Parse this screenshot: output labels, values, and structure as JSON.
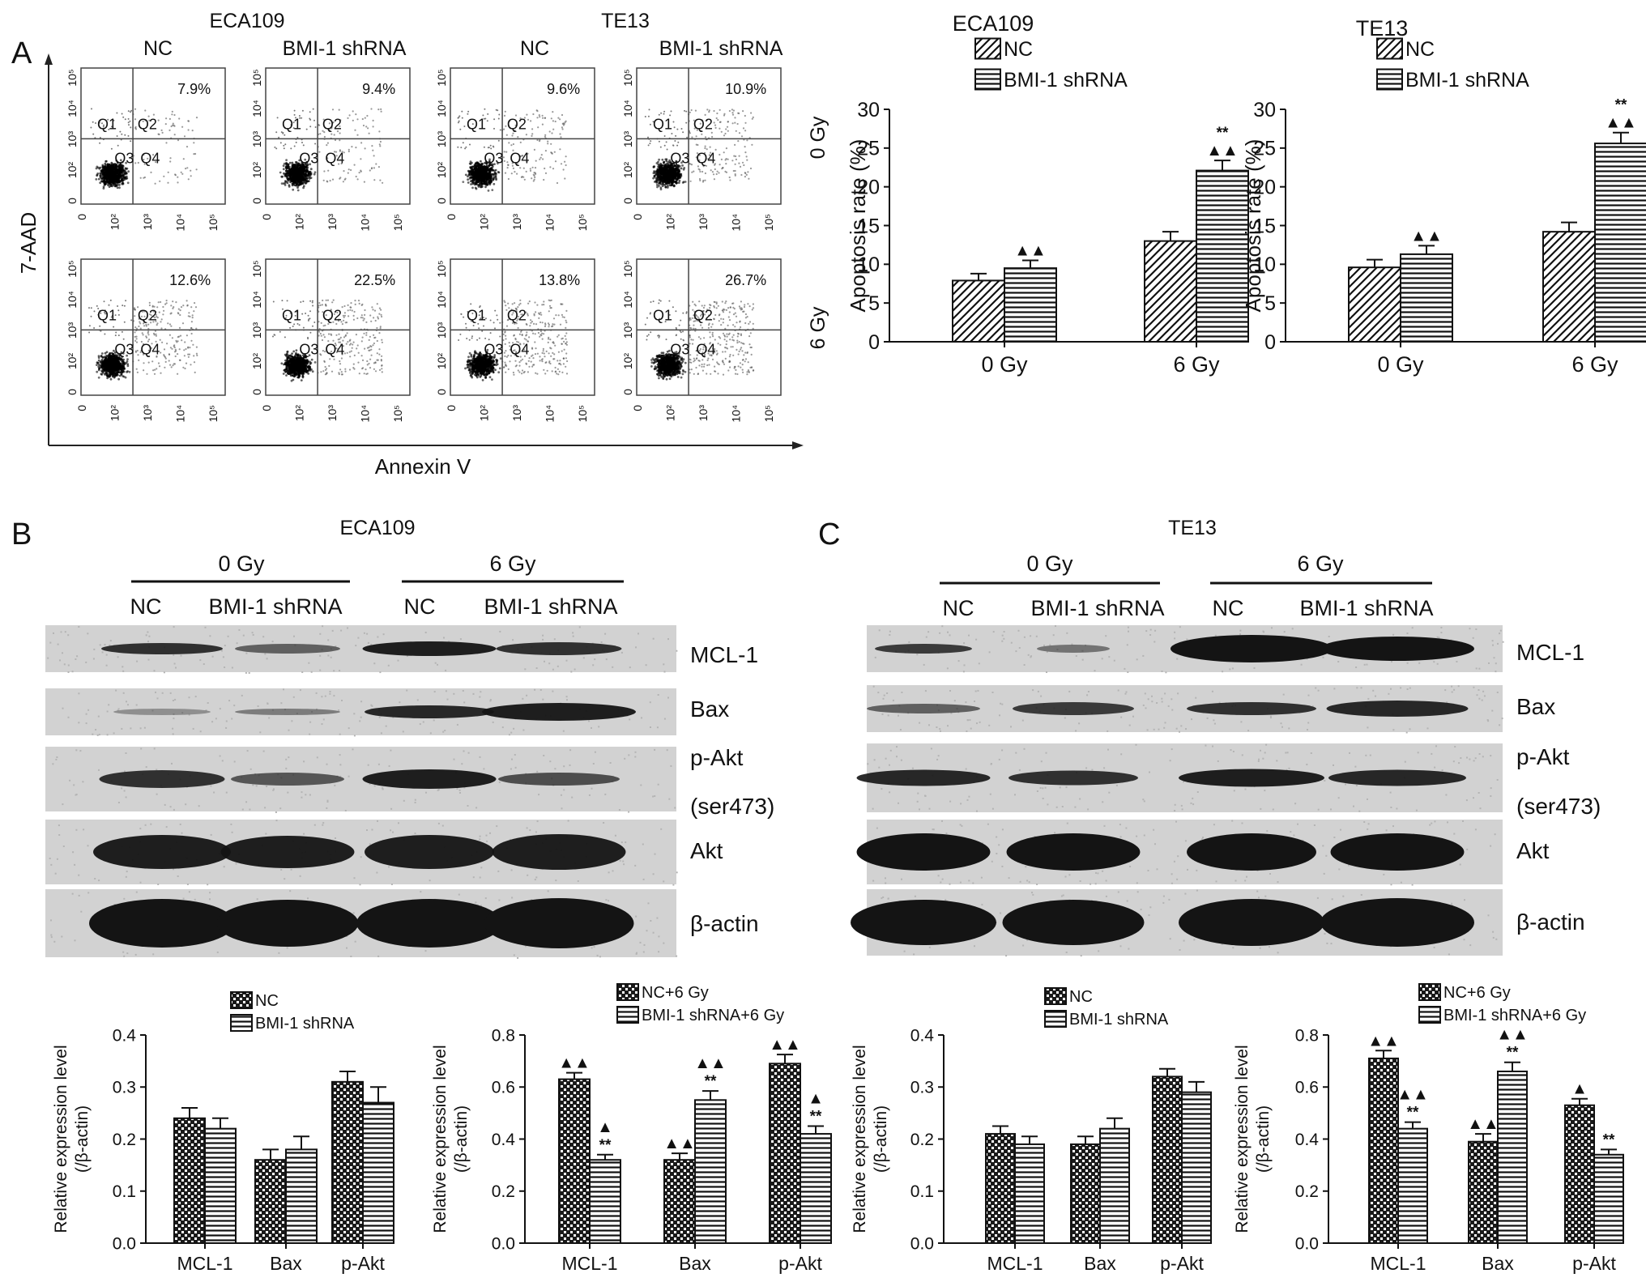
{
  "panel_letters": [
    "A",
    "B",
    "C"
  ],
  "flow": {
    "cell_lines": [
      "ECA109",
      "TE13"
    ],
    "group_labels": [
      "NC",
      "BMI-1 shRNA",
      "NC",
      "BMI-1 shRNA"
    ],
    "dose_labels": [
      "0 Gy",
      "6 Gy"
    ],
    "y_axis_label": "7-AAD",
    "x_axis_label": "Annexin V",
    "quadrants": [
      "Q1",
      "Q2",
      "Q3",
      "Q4"
    ],
    "tick_labels": [
      "0",
      "10²",
      "10³",
      "10⁴",
      "10⁵"
    ],
    "percentages": [
      [
        "7.9%",
        "9.4%",
        "9.6%",
        "10.9%"
      ],
      [
        "12.6%",
        "22.5%",
        "13.8%",
        "26.7%"
      ]
    ]
  },
  "western": {
    "titles": [
      "ECA109",
      "TE13"
    ],
    "dose_labels": [
      "0 Gy",
      "6 Gy"
    ],
    "lane_labels": [
      "NC",
      "BMI-1 shRNA",
      "NC",
      "BMI-1 shRNA"
    ],
    "proteins": [
      "MCL-1",
      "Bax",
      "p-Akt",
      "(ser473)",
      "Akt",
      "β-actin"
    ]
  },
  "chart_data": [
    {
      "type": "bar",
      "title": "ECA109",
      "categories": [
        "0 Gy",
        "6 Gy"
      ],
      "series": [
        {
          "name": "NC",
          "values": [
            7.9,
            13.0
          ],
          "errors": [
            0.9,
            1.2
          ],
          "pattern": "diagonal"
        },
        {
          "name": "BMI-1 shRNA",
          "values": [
            9.5,
            22.1
          ],
          "errors": [
            1.0,
            1.3
          ],
          "pattern": "horizontal"
        }
      ],
      "annotations": [
        [
          "",
          ""
        ],
        [
          "▲▲",
          "**\n▲▲"
        ]
      ],
      "ylabel": "Apoptosis rate (%)",
      "ylim": [
        0,
        30
      ],
      "yticks": [
        0,
        5,
        10,
        15,
        20,
        25,
        30
      ],
      "legend": "top-left"
    },
    {
      "type": "bar",
      "title": "TE13",
      "categories": [
        "0 Gy",
        "6 Gy"
      ],
      "series": [
        {
          "name": "NC",
          "values": [
            9.6,
            14.2
          ],
          "errors": [
            1.0,
            1.2
          ],
          "pattern": "diagonal"
        },
        {
          "name": "BMI-1 shRNA",
          "values": [
            11.3,
            25.6
          ],
          "errors": [
            1.1,
            1.4
          ],
          "pattern": "horizontal"
        }
      ],
      "annotations": [
        [
          "",
          ""
        ],
        [
          "▲▲",
          "**\n▲▲"
        ]
      ],
      "ylabel": "Apoptosis rate (%)",
      "ylim": [
        0,
        30
      ],
      "yticks": [
        0,
        5,
        10,
        15,
        20,
        25,
        30
      ],
      "legend": "top-left"
    },
    {
      "type": "bar",
      "categories": [
        "MCL-1",
        "Bax",
        "p-Akt"
      ],
      "series": [
        {
          "name": "NC",
          "values": [
            0.24,
            0.16,
            0.31
          ],
          "errors": [
            0.02,
            0.02,
            0.02
          ],
          "pattern": "checker"
        },
        {
          "name": "BMI-1 shRNA",
          "values": [
            0.22,
            0.18,
            0.27
          ],
          "errors": [
            0.02,
            0.025,
            0.03
          ],
          "pattern": "horizontal"
        }
      ],
      "annotations": [
        [
          "",
          "",
          ""
        ],
        [
          "",
          "",
          ""
        ]
      ],
      "ylabel": "Relative expression level\n(/β-actin)",
      "ylim": [
        0,
        0.4
      ],
      "yticks": [
        0.0,
        0.1,
        0.2,
        0.3,
        0.4
      ],
      "legend": "top"
    },
    {
      "type": "bar",
      "categories": [
        "MCL-1",
        "Bax",
        "p-Akt"
      ],
      "series": [
        {
          "name": "NC+6 Gy",
          "values": [
            0.63,
            0.32,
            0.69
          ],
          "errors": [
            0.025,
            0.025,
            0.035
          ],
          "pattern": "checker"
        },
        {
          "name": "BMI-1 shRNA+6 Gy",
          "values": [
            0.32,
            0.55,
            0.42
          ],
          "errors": [
            0.02,
            0.035,
            0.03
          ],
          "pattern": "horizontal"
        }
      ],
      "annotations": [
        [
          "▲▲",
          "▲▲",
          "▲▲"
        ],
        [
          "▲\n**",
          "▲▲\n**",
          "▲\n**"
        ]
      ],
      "ylabel": "Relative expression level\n(/β-actin)",
      "ylim": [
        0,
        0.8
      ],
      "yticks": [
        0.0,
        0.2,
        0.4,
        0.6,
        0.8
      ],
      "legend": "top"
    },
    {
      "type": "bar",
      "categories": [
        "MCL-1",
        "Bax",
        "p-Akt"
      ],
      "series": [
        {
          "name": "NC",
          "values": [
            0.21,
            0.19,
            0.32
          ],
          "errors": [
            0.015,
            0.015,
            0.015
          ],
          "pattern": "checker"
        },
        {
          "name": "BMI-1 shRNA",
          "values": [
            0.19,
            0.22,
            0.29
          ],
          "errors": [
            0.015,
            0.02,
            0.02
          ],
          "pattern": "horizontal"
        }
      ],
      "annotations": [
        [
          "",
          "",
          ""
        ],
        [
          "",
          "",
          ""
        ]
      ],
      "ylabel": "Relative expression level\n(/β-actin)",
      "ylim": [
        0,
        0.4
      ],
      "yticks": [
        0.0,
        0.1,
        0.2,
        0.3,
        0.4
      ],
      "legend": "top"
    },
    {
      "type": "bar",
      "categories": [
        "MCL-1",
        "Bax",
        "p-Akt"
      ],
      "series": [
        {
          "name": "NC+6 Gy",
          "values": [
            0.71,
            0.39,
            0.53
          ],
          "errors": [
            0.03,
            0.03,
            0.025
          ],
          "pattern": "checker"
        },
        {
          "name": "BMI-1 shRNA+6 Gy",
          "values": [
            0.44,
            0.66,
            0.34
          ],
          "errors": [
            0.025,
            0.035,
            0.02
          ],
          "pattern": "horizontal"
        }
      ],
      "annotations": [
        [
          "▲▲",
          "▲▲",
          "▲"
        ],
        [
          "▲▲\n**",
          "▲▲\n**",
          "**"
        ]
      ],
      "ylabel": "Relative expression level\n(/β-actin)",
      "ylim": [
        0,
        0.8
      ],
      "yticks": [
        0.0,
        0.2,
        0.4,
        0.6,
        0.8
      ],
      "legend": "top"
    }
  ]
}
